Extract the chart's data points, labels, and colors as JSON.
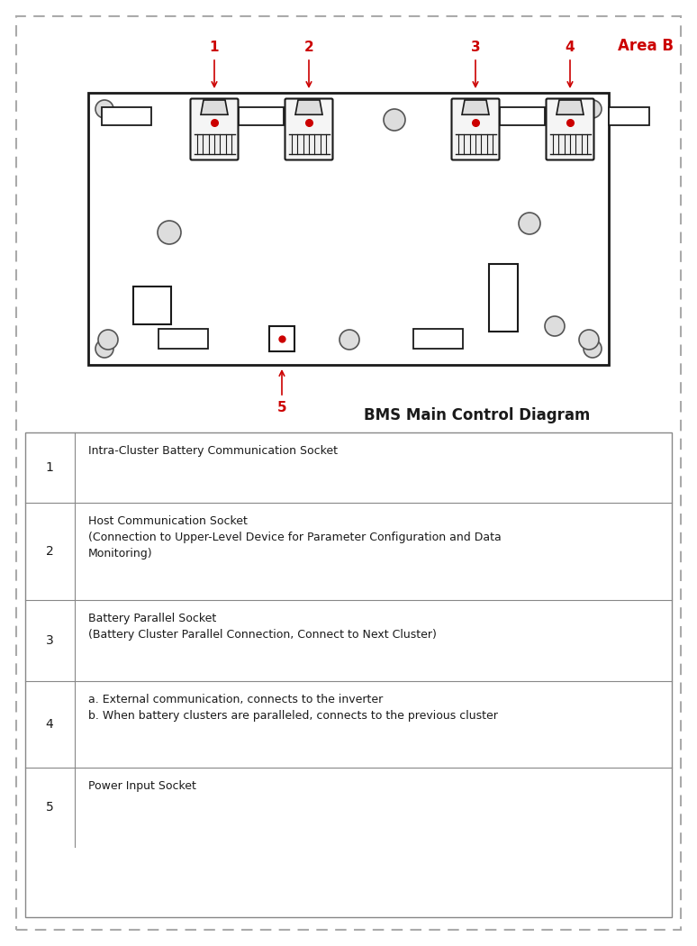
{
  "title": "BMS Main Control Diagram",
  "area_label": "Area B",
  "background_color": "#ffffff",
  "border_color": "#999999",
  "red_color": "#cc0000",
  "dark_color": "#1a1a1a",
  "gray_color": "#888888",
  "table_entries": [
    {
      "num": "1",
      "text": "Intra-Cluster Battery Communication Socket"
    },
    {
      "num": "2",
      "text": "Host Communication Socket\n(Connection to Upper-Level Device for Parameter Configuration and Data\nMonitoring)"
    },
    {
      "num": "3",
      "text": "Battery Parallel Socket\n(Battery Cluster Parallel Connection, Connect to Next Cluster)"
    },
    {
      "num": "4",
      "text": "a. External communication, connects to the inverter\nb. When battery clusters are paralleled, connects to the previous cluster"
    },
    {
      "num": "5",
      "text": "Power Input Socket"
    }
  ]
}
